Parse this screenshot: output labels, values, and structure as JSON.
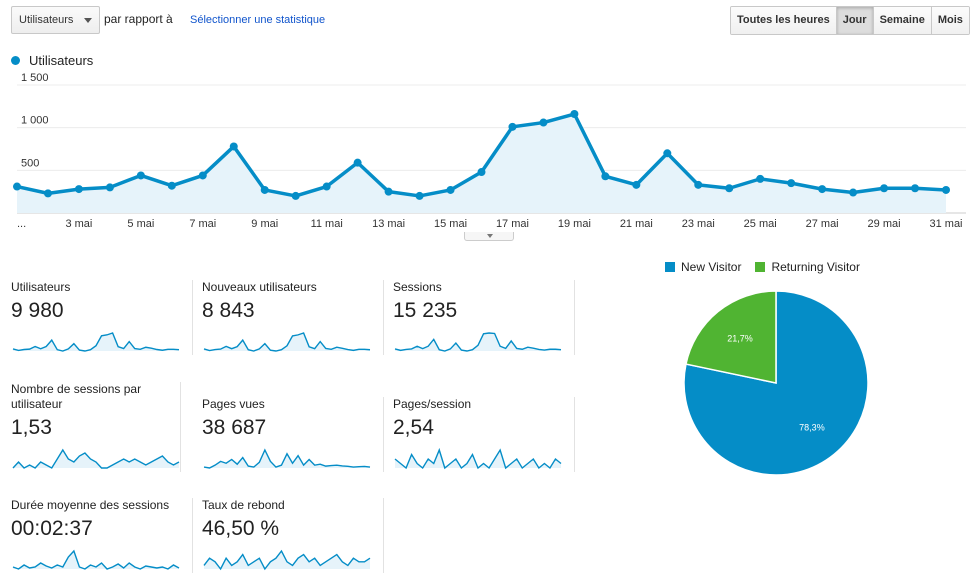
{
  "controls": {
    "metric_select": "Utilisateurs",
    "vs_label": "par rapport à",
    "select_stat_link": "Sélectionner une statistique",
    "periods": [
      {
        "label": "Toutes les heures",
        "active": false
      },
      {
        "label": "Jour",
        "active": true
      },
      {
        "label": "Semaine",
        "active": false
      },
      {
        "label": "Mois",
        "active": false
      }
    ]
  },
  "colors": {
    "series": "#058dc7",
    "series_fill": "#e6f3fa",
    "new_visitor": "#058dc7",
    "returning_visitor": "#50b432",
    "grid": "#ececec"
  },
  "chart_data": [
    {
      "type": "area",
      "series_name": "Utilisateurs",
      "ylim": [
        0,
        1500
      ],
      "yticks": [
        {
          "value": 500,
          "label": "500"
        },
        {
          "value": 1000,
          "label": "1 000"
        },
        {
          "value": 1500,
          "label": "1 500"
        }
      ],
      "x_labels": [
        "...",
        "3 mai",
        "5 mai",
        "7 mai",
        "9 mai",
        "11 mai",
        "13 mai",
        "15 mai",
        "17 mai",
        "19 mai",
        "21 mai",
        "23 mai",
        "25 mai",
        "27 mai",
        "29 mai",
        "31 mai"
      ],
      "values": [
        310,
        230,
        280,
        300,
        440,
        320,
        440,
        780,
        270,
        200,
        310,
        590,
        250,
        200,
        270,
        480,
        1010,
        1060,
        1160,
        430,
        330,
        700,
        330,
        290,
        400,
        350,
        280,
        240,
        290,
        290,
        270
      ]
    },
    {
      "type": "pie",
      "slices": [
        {
          "name": "New Visitor",
          "value": 78.3,
          "label": "78,3%"
        },
        {
          "name": "Returning Visitor",
          "value": 21.7,
          "label": "21,7%"
        }
      ]
    }
  ],
  "tiles": [
    {
      "label": "Utilisateurs",
      "value": "9 980",
      "spark": [
        310,
        230,
        280,
        300,
        440,
        320,
        440,
        780,
        270,
        200,
        310,
        590,
        250,
        200,
        270,
        480,
        1010,
        1060,
        1160,
        430,
        330,
        700,
        330,
        290,
        400,
        350,
        280,
        240,
        290,
        290,
        270
      ]
    },
    {
      "label": "Nouveaux utilisateurs",
      "value": "8 843",
      "spark": [
        280,
        200,
        250,
        270,
        400,
        290,
        390,
        700,
        240,
        180,
        280,
        530,
        220,
        180,
        240,
        430,
        900,
        950,
        1040,
        380,
        290,
        630,
        300,
        260,
        360,
        310,
        250,
        210,
        260,
        260,
        240
      ]
    },
    {
      "label": "Sessions",
      "value": "15 235",
      "spark": [
        450,
        360,
        420,
        450,
        620,
        470,
        620,
        1050,
        400,
        320,
        450,
        820,
        380,
        320,
        400,
        680,
        1400,
        1450,
        1420,
        620,
        480,
        950,
        480,
        430,
        560,
        500,
        420,
        380,
        430,
        430,
        400
      ]
    },
    {
      "label": "Nombre de sessions par utilisateur",
      "value": "1,53",
      "spark": [
        1.5,
        1.52,
        1.5,
        1.51,
        1.5,
        1.52,
        1.51,
        1.5,
        1.53,
        1.56,
        1.53,
        1.52,
        1.54,
        1.55,
        1.53,
        1.52,
        1.5,
        1.5,
        1.51,
        1.52,
        1.53,
        1.52,
        1.53,
        1.52,
        1.51,
        1.52,
        1.53,
        1.54,
        1.52,
        1.51,
        1.52
      ]
    },
    {
      "label": "Pages vues",
      "value": "38 687",
      "spark": [
        900,
        850,
        1000,
        1200,
        1100,
        1300,
        1050,
        1400,
        950,
        900,
        1150,
        1800,
        1200,
        900,
        1000,
        1600,
        1100,
        1500,
        1000,
        1300,
        1000,
        1050,
        950,
        980,
        1000,
        960,
        940,
        900,
        920,
        930,
        900
      ]
    },
    {
      "label": "Pages/session",
      "value": "2,54",
      "spark": [
        2.6,
        2.55,
        2.5,
        2.65,
        2.55,
        2.5,
        2.6,
        2.55,
        2.7,
        2.5,
        2.55,
        2.6,
        2.5,
        2.55,
        2.65,
        2.5,
        2.55,
        2.5,
        2.6,
        2.7,
        2.5,
        2.55,
        2.6,
        2.5,
        2.55,
        2.6,
        2.5,
        2.55,
        2.5,
        2.6,
        2.55
      ]
    },
    {
      "label": "Durée moyenne des sessions",
      "value": "00:02:37",
      "spark": [
        150,
        140,
        160,
        145,
        150,
        170,
        155,
        145,
        160,
        150,
        200,
        230,
        150,
        140,
        160,
        150,
        170,
        140,
        150,
        165,
        145,
        170,
        150,
        140,
        155,
        150,
        145,
        150,
        140,
        160,
        145
      ]
    },
    {
      "label": "Taux de rebond",
      "value": "46,50 %",
      "spark": [
        45,
        47,
        46,
        44,
        47,
        45,
        46,
        48,
        45,
        46,
        47,
        44,
        46,
        47,
        49,
        46,
        45,
        47,
        48,
        46,
        47,
        45,
        46,
        47,
        48,
        46,
        45,
        47,
        46,
        46,
        47
      ]
    }
  ]
}
